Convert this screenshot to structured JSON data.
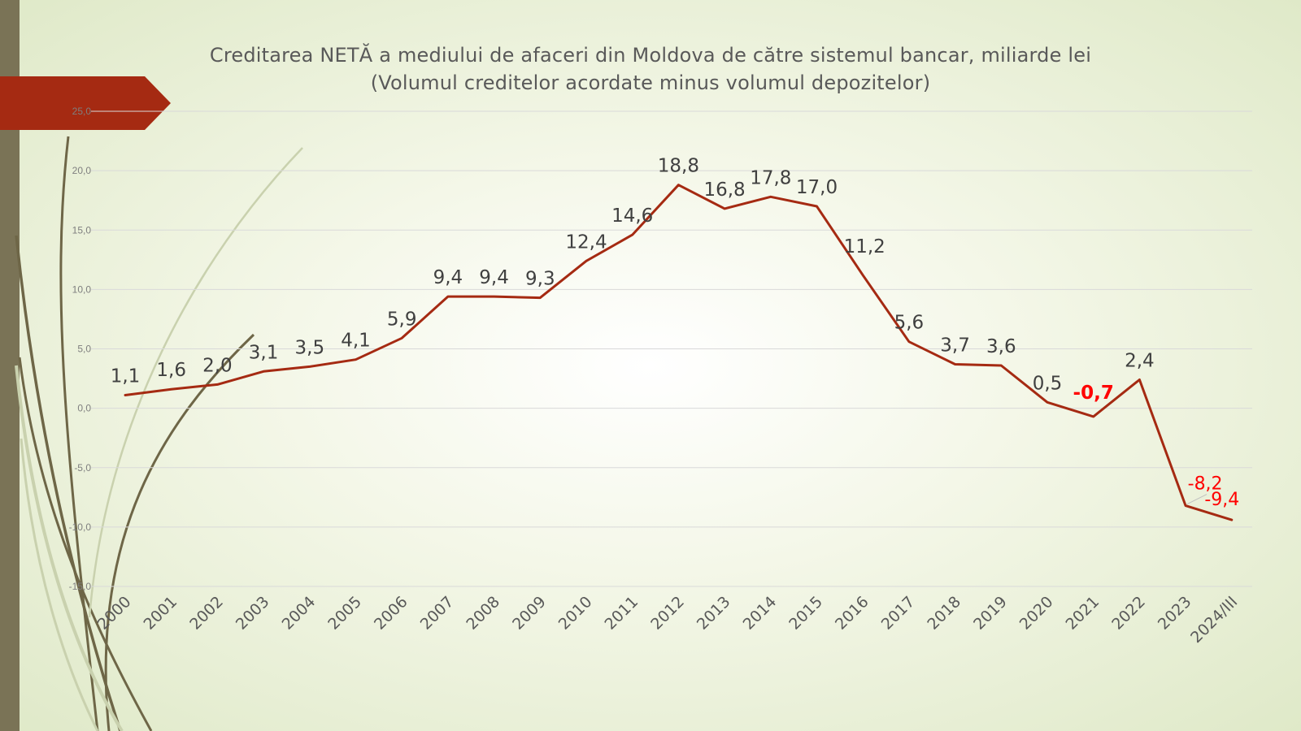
{
  "slide": {
    "left_bar_color": "#7a7356",
    "arrow_color": "#a52a12",
    "line_color": "#a52a12",
    "negative_label_color": "#ff0000",
    "label_color": "#404040",
    "decor_line_colors": [
      "#6e6647",
      "#c9d1ae"
    ]
  },
  "chart_data": {
    "type": "line",
    "title": "Creditarea NETĂ a mediului de afaceri din Moldova de către sistemul bancar, miliarde lei",
    "subtitle": "(Volumul creditelor acordate minus volumul depozitelor)",
    "xlabel": "",
    "ylabel": "",
    "ylim": [
      -15,
      25
    ],
    "yticks": [
      "25,0",
      "20,0",
      "15,0",
      "10,0",
      "5,0",
      "0,0",
      "-5,0",
      "-10,0",
      "-15,0"
    ],
    "grid": true,
    "legend": "none",
    "categories": [
      "2000",
      "2001",
      "2002",
      "2003",
      "2004",
      "2005",
      "2006",
      "2007",
      "2008",
      "2009",
      "2010",
      "2011",
      "2012",
      "2013",
      "2014",
      "2015",
      "2016",
      "2017",
      "2018",
      "2019",
      "2020",
      "2021",
      "2022",
      "2023",
      "2024/III"
    ],
    "series": [
      {
        "values": [
          1.1,
          1.6,
          2.0,
          3.1,
          3.5,
          4.1,
          5.9,
          9.4,
          9.4,
          9.3,
          12.4,
          14.6,
          18.8,
          16.8,
          17.8,
          17.0,
          11.2,
          5.6,
          3.7,
          3.6,
          0.5,
          -0.7,
          2.4,
          -8.2,
          -9.4
        ],
        "data_labels": [
          "1,1",
          "1,6",
          "2,0",
          "3,1",
          "3,5",
          "4,1",
          "5,9",
          "9,4",
          "9,4",
          "9,3",
          "12,4",
          "14,6",
          "18,8",
          "16,8",
          "17,8",
          "17,0",
          "11,2",
          "5,6",
          "3,7",
          "3,6",
          "0,5",
          "-0,7",
          "2,4",
          "-8,2",
          "-9,4"
        ]
      }
    ]
  }
}
